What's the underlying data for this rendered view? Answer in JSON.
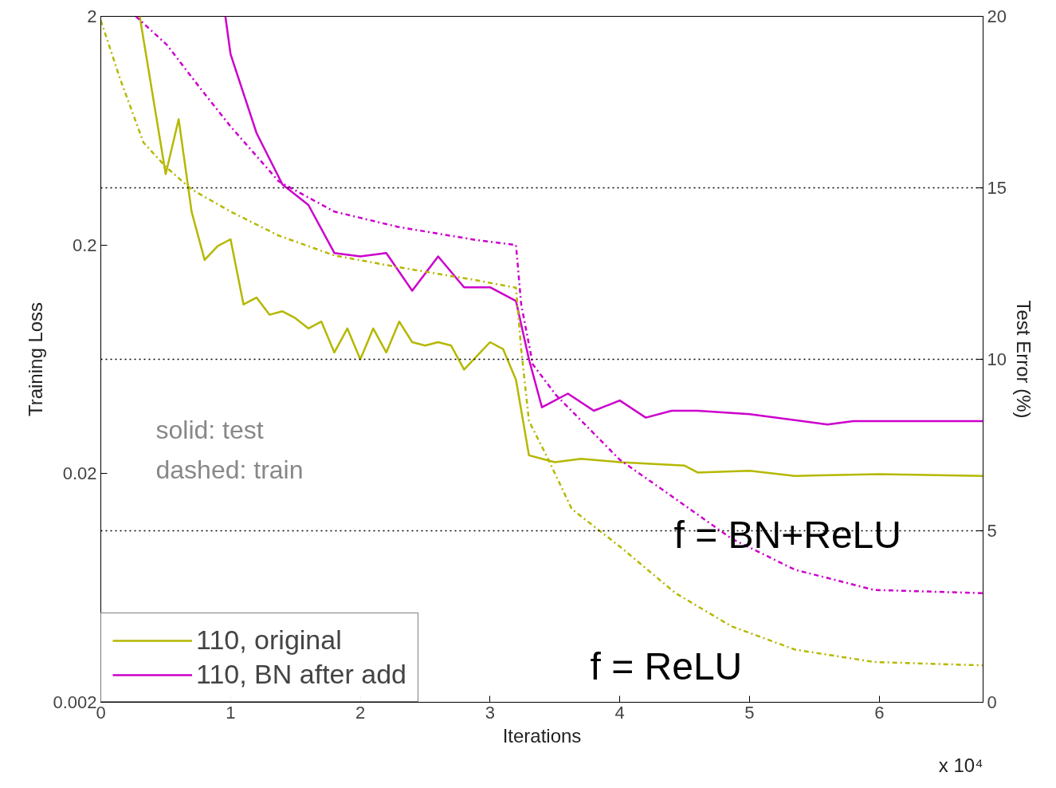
{
  "chart_data": {
    "type": "line",
    "xlabel": "Iterations",
    "ylabel": "Training Loss",
    "y2label": "Test Error (%)",
    "xlim": [
      0,
      6.8
    ],
    "xticks": [
      0,
      1,
      2,
      3,
      4,
      5,
      6
    ],
    "ylim": [
      0.002,
      2
    ],
    "yticks": [
      0.002,
      0.02,
      0.2,
      2
    ],
    "log": "y",
    "y2lim": [
      0,
      20
    ],
    "y2ticks": [
      0,
      5,
      10,
      15,
      20
    ],
    "legend": "bottom left",
    "grid": false,
    "ref_lines": [
      {
        "axis": "y2",
        "value": 5,
        "color": "#000000",
        "line_style": "dotted"
      },
      {
        "axis": "y2",
        "value": 10,
        "color": "#000000",
        "line_style": "dotted"
      },
      {
        "axis": "y2",
        "value": 15,
        "color": "#000000",
        "line_style": "dotted"
      }
    ],
    "annotations": [
      "solid: test",
      "dashed: train",
      "x 10⁴",
      "f = BN+ReLU",
      "f = ReLU"
    ],
    "series": [
      {
        "name": "110, original",
        "color": "#b5b800",
        "axis": "y2",
        "line_style": "solid",
        "x": [
          0.3,
          0.5,
          0.6,
          0.7,
          0.8,
          0.9,
          1.0,
          1.1,
          1.2,
          1.3,
          1.4,
          1.5,
          1.6,
          1.7,
          1.8,
          1.9,
          2.0,
          2.1,
          2.2,
          2.3,
          2.4,
          2.5,
          2.6,
          2.7,
          2.8,
          2.9,
          3.0,
          3.1,
          3.2,
          3.3,
          3.4,
          3.5,
          3.7,
          4.0,
          4.5,
          4.6,
          5.0,
          5.35,
          6.0,
          6.8
        ],
        "values": [
          20,
          15.4,
          17.0,
          14.3,
          12.9,
          13.3,
          13.5,
          11.6,
          11.8,
          11.3,
          11.4,
          11.2,
          10.9,
          11.1,
          10.2,
          10.9,
          10.0,
          10.9,
          10.2,
          11.1,
          10.5,
          10.4,
          10.5,
          10.4,
          9.7,
          10.1,
          10.5,
          10.3,
          9.4,
          7.2,
          7.1,
          7.0,
          7.1,
          7.0,
          6.9,
          6.7,
          6.75,
          6.6,
          6.65,
          6.6
        ]
      },
      {
        "name": "110, BN after add",
        "color": "#cc00cc",
        "axis": "y2",
        "line_style": "solid",
        "x": [
          0.96,
          1.0,
          1.2,
          1.4,
          1.6,
          1.8,
          2.0,
          2.2,
          2.4,
          2.6,
          2.8,
          3.0,
          3.2,
          3.3,
          3.4,
          3.6,
          3.8,
          4.0,
          4.2,
          4.4,
          4.6,
          5.0,
          5.6,
          5.8,
          6.8
        ],
        "values": [
          20,
          18.9,
          16.6,
          15.1,
          14.5,
          13.1,
          13.0,
          13.1,
          12.0,
          13.0,
          12.1,
          12.1,
          11.7,
          10.0,
          8.6,
          9.0,
          8.5,
          8.8,
          8.3,
          8.5,
          8.5,
          8.4,
          8.1,
          8.2,
          8.2
        ]
      },
      {
        "color": "#b5b800",
        "line_style": "dashed",
        "x": [
          0,
          0.15,
          0.33,
          0.5,
          0.7,
          1.0,
          1.37,
          1.8,
          2.29,
          2.9,
          3.2,
          3.24,
          3.3,
          3.45,
          3.63,
          4.0,
          4.43,
          4.86,
          5.35,
          5.96,
          6.8
        ],
        "values": [
          1.92,
          1.06,
          0.56,
          0.44,
          0.35,
          0.28,
          0.22,
          0.18,
          0.16,
          0.14,
          0.13,
          0.07,
          0.034,
          0.023,
          0.014,
          0.0096,
          0.006,
          0.0043,
          0.0034,
          0.003,
          0.0029
        ]
      },
      {
        "color": "#cc00cc",
        "line_style": "dashed",
        "x": [
          0.27,
          0.51,
          0.76,
          1.0,
          1.37,
          1.8,
          2.29,
          2.9,
          3.2,
          3.24,
          3.33,
          3.51,
          4.0,
          4.43,
          4.86,
          5.35,
          5.96,
          6.8
        ],
        "values": [
          2,
          1.5,
          0.98,
          0.66,
          0.38,
          0.28,
          0.24,
          0.21,
          0.2,
          0.11,
          0.06,
          0.044,
          0.023,
          0.0155,
          0.0104,
          0.0076,
          0.0062,
          0.006
        ]
      }
    ]
  }
}
